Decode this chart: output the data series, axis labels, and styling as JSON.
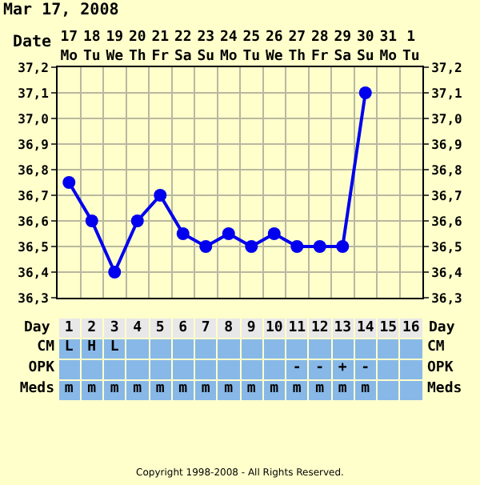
{
  "chart_data": [
    {
      "type": "line",
      "title": "Mar 17, 2008",
      "xlabel": "Date",
      "categories": [
        "17\nMo",
        "18\nTu",
        "19\nWe",
        "20\nTh",
        "21\nFr",
        "22\nSa",
        "23\nSu",
        "24\nMo",
        "25\nTu",
        "26\nWe",
        "27\nTh",
        "28\nFr",
        "29\nSa",
        "30\nSu",
        "31\nMo",
        "1\nTu"
      ],
      "series": [
        {
          "color": "#0000ee",
          "values": [
            36.75,
            36.6,
            36.4,
            36.6,
            36.7,
            36.55,
            36.5,
            36.55,
            36.5,
            36.55,
            36.5,
            36.5,
            36.5,
            37.1,
            null,
            null
          ]
        }
      ],
      "ylim": [
        36.3,
        37.2
      ],
      "yticks": [
        {
          "value": 36.3,
          "label": "36,3"
        },
        {
          "value": 36.4,
          "label": "36,4"
        },
        {
          "value": 36.5,
          "label": "36,5"
        },
        {
          "value": 36.6,
          "label": "36,6"
        },
        {
          "value": 36.7,
          "label": "36,7"
        },
        {
          "value": 36.8,
          "label": "36,8"
        },
        {
          "value": 36.9,
          "label": "36,9"
        },
        {
          "value": 37.0,
          "label": "37,0"
        },
        {
          "value": 37.1,
          "label": "37,1"
        },
        {
          "value": 37.2,
          "label": "37,2"
        }
      ],
      "y2lim": [
        36.3,
        37.2
      ],
      "y2ticks": [
        {
          "value": 36.3,
          "label": "36,3"
        },
        {
          "value": 36.4,
          "label": "36,4"
        },
        {
          "value": 36.5,
          "label": "36,5"
        },
        {
          "value": 36.6,
          "label": "36,6"
        },
        {
          "value": 36.7,
          "label": "36,7"
        },
        {
          "value": 36.8,
          "label": "36,8"
        },
        {
          "value": 36.9,
          "label": "36,9"
        },
        {
          "value": 37.0,
          "label": "37,0"
        },
        {
          "value": 37.1,
          "label": "37,1"
        },
        {
          "value": 37.2,
          "label": "37,2"
        }
      ],
      "x2label": "Day",
      "x2lim": [
        0.5,
        16.5
      ],
      "x2ticks": [
        1,
        2,
        3,
        4,
        5,
        6,
        7,
        8,
        9,
        10,
        11,
        12,
        13,
        14,
        15,
        16
      ],
      "grid": true,
      "marker": "circle",
      "line_style": "solid",
      "annotations": [
        "Copyright 1998-2008 - All Rights Reserved."
      ]
    },
    {
      "type": "other",
      "y_categories": [
        "CM",
        "OPK",
        "Meds"
      ],
      "y2_categories": [
        "CM",
        "OPK",
        "Meds"
      ],
      "cell_labels": [
        [
          "L",
          "H",
          "L",
          null,
          null,
          null,
          null,
          null,
          null,
          null,
          null,
          null,
          null,
          null,
          null,
          null
        ],
        [
          null,
          null,
          null,
          null,
          null,
          null,
          null,
          null,
          null,
          null,
          "-",
          "-",
          "+",
          "-",
          null,
          null
        ],
        [
          "m",
          "m",
          "m",
          "m",
          "m",
          "m",
          "m",
          "m",
          "m",
          "m",
          "m",
          "m",
          "m",
          "m",
          null,
          null
        ]
      ]
    }
  ]
}
